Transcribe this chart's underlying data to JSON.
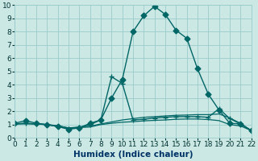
{
  "xlabel": "Humidex (Indice chaleur)",
  "bg_color": "#cce8e4",
  "grid_color": "#99cccc",
  "line_color": "#006666",
  "xlim": [
    0,
    22
  ],
  "ylim": [
    0,
    10
  ],
  "xticks": [
    0,
    1,
    2,
    3,
    4,
    5,
    6,
    7,
    8,
    9,
    10,
    11,
    12,
    13,
    14,
    15,
    16,
    17,
    18,
    19,
    20,
    21,
    22
  ],
  "yticks": [
    0,
    1,
    2,
    3,
    4,
    5,
    6,
    7,
    8,
    9,
    10
  ],
  "lines": [
    {
      "x": [
        0,
        1,
        2,
        3,
        4,
        5,
        6,
        7,
        8,
        9,
        10,
        11,
        12,
        13,
        14,
        15,
        16,
        17,
        18,
        19,
        20,
        21,
        22
      ],
      "y": [
        1.1,
        1.3,
        1.1,
        1.0,
        0.85,
        0.65,
        0.75,
        1.1,
        1.35,
        3.0,
        4.4,
        8.0,
        9.2,
        9.9,
        9.3,
        8.1,
        7.5,
        5.2,
        3.3,
        2.1,
        1.1,
        1.05,
        0.55
      ],
      "marker": "D",
      "markersize": 3.5,
      "lw": 1.0
    },
    {
      "x": [
        0,
        1,
        2,
        3,
        4,
        5,
        6,
        7,
        8,
        9,
        10,
        11,
        12,
        13,
        14,
        15,
        16,
        17,
        18,
        19,
        20,
        21,
        22
      ],
      "y": [
        1.05,
        1.1,
        1.05,
        1.0,
        0.85,
        0.7,
        0.8,
        1.0,
        1.35,
        4.6,
        4.1,
        1.35,
        1.4,
        1.5,
        1.55,
        1.6,
        1.6,
        1.6,
        1.55,
        2.2,
        1.45,
        1.05,
        0.55
      ],
      "marker": "+",
      "markersize": 5,
      "lw": 1.0
    },
    {
      "x": [
        0,
        1,
        2,
        3,
        4,
        5,
        6,
        7,
        8,
        9,
        10,
        11,
        12,
        13,
        14,
        15,
        16,
        17,
        18,
        19,
        20,
        21,
        22
      ],
      "y": [
        1.05,
        1.1,
        1.05,
        1.0,
        0.9,
        0.75,
        0.82,
        0.88,
        1.05,
        1.2,
        1.35,
        1.45,
        1.55,
        1.6,
        1.65,
        1.7,
        1.72,
        1.75,
        1.75,
        1.8,
        1.5,
        1.1,
        0.55
      ],
      "marker": null,
      "markersize": 0,
      "lw": 0.9
    },
    {
      "x": [
        0,
        1,
        2,
        3,
        4,
        5,
        6,
        7,
        8,
        9,
        10,
        11,
        12,
        13,
        14,
        15,
        16,
        17,
        18,
        19,
        20,
        21,
        22
      ],
      "y": [
        1.05,
        1.05,
        1.05,
        1.0,
        0.92,
        0.75,
        0.78,
        0.82,
        1.0,
        1.1,
        1.18,
        1.22,
        1.28,
        1.32,
        1.35,
        1.4,
        1.42,
        1.42,
        1.38,
        1.3,
        1.0,
        0.9,
        0.55
      ],
      "marker": null,
      "markersize": 0,
      "lw": 0.9
    }
  ]
}
